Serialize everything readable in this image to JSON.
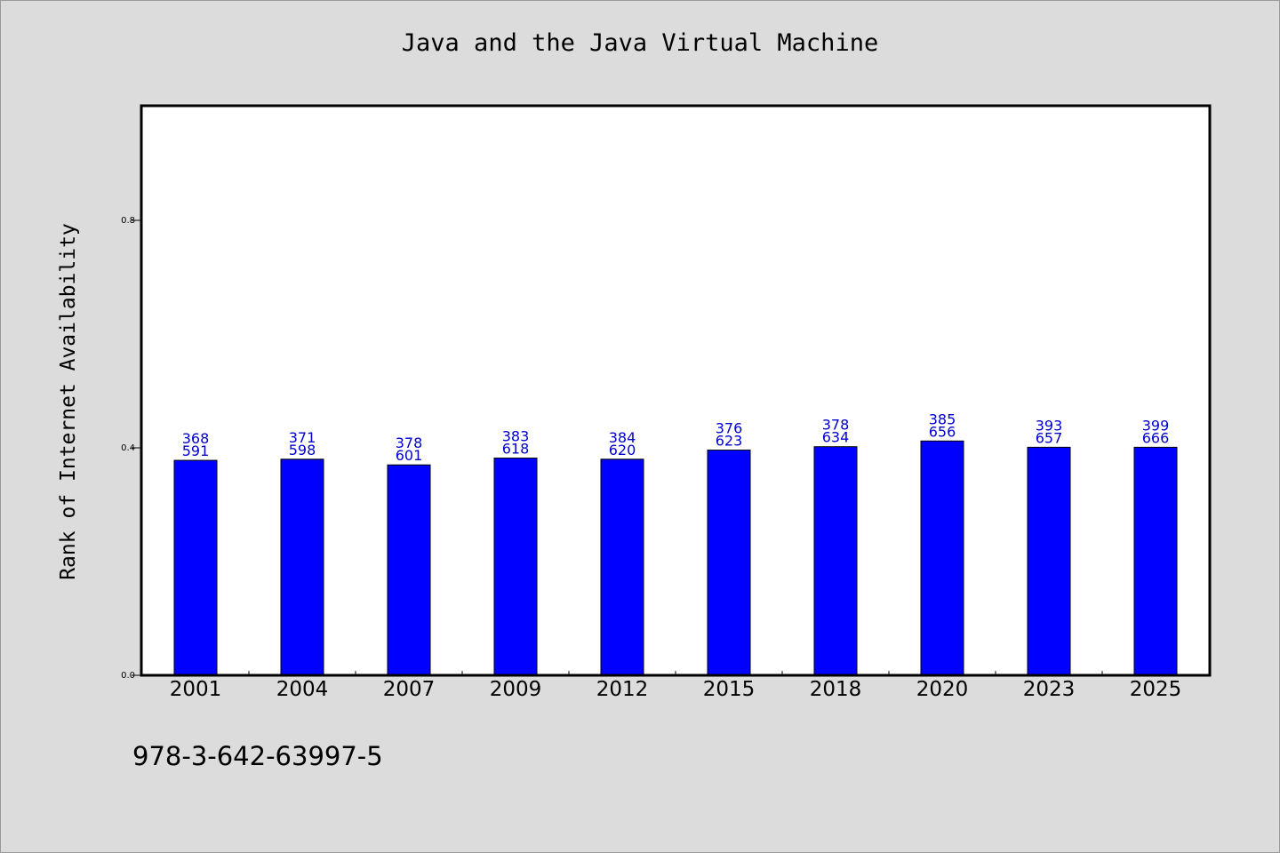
{
  "chart_data": {
    "type": "bar",
    "title": "Java and the Java Virtual Machine",
    "ylabel": "Rank of Internet Availability",
    "xlabel": "",
    "ylim": [
      0,
      1.0
    ],
    "yticks": [
      0.0,
      0.4,
      0.8
    ],
    "ytick_labels": [
      "0.0",
      "0.4",
      "0.8"
    ],
    "categories": [
      "2001",
      "2004",
      "2007",
      "2009",
      "2012",
      "2015",
      "2018",
      "2020",
      "2023",
      "2025"
    ],
    "values": [
      0.378,
      0.38,
      0.37,
      0.382,
      0.38,
      0.396,
      0.402,
      0.412,
      0.401,
      0.401
    ],
    "data_labels": [
      [
        "368",
        "591"
      ],
      [
        "371",
        "598"
      ],
      [
        "378",
        "601"
      ],
      [
        "383",
        "618"
      ],
      [
        "384",
        "620"
      ],
      [
        "376",
        "623"
      ],
      [
        "378",
        "634"
      ],
      [
        "385",
        "656"
      ],
      [
        "393",
        "657"
      ],
      [
        "399",
        "666"
      ]
    ],
    "bar_color": "#0000ff",
    "label_color": "#0000cc",
    "grid": false,
    "legend": "none"
  },
  "footer": {
    "isbn": "978-3-642-63997-5"
  }
}
